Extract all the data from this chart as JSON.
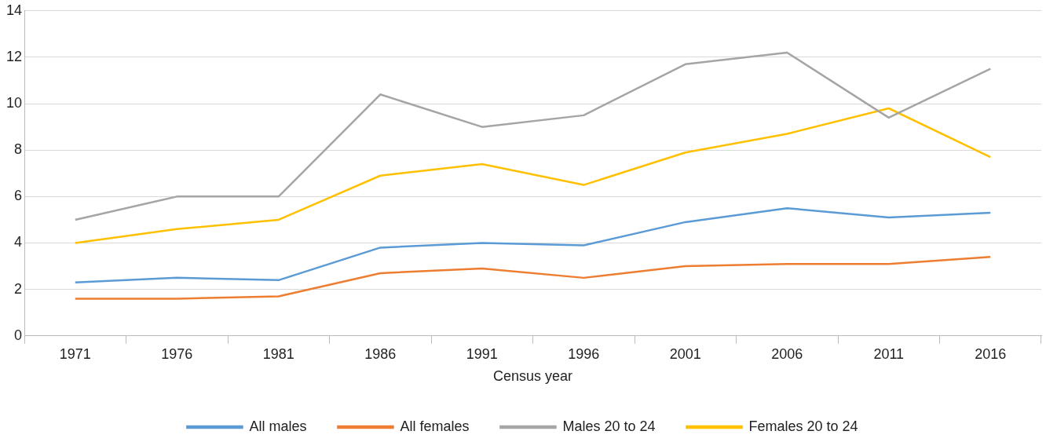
{
  "chart_data": {
    "type": "line",
    "xlabel": "Census year",
    "categories": [
      "1971",
      "1976",
      "1981",
      "1986",
      "1991",
      "1996",
      "2001",
      "2006",
      "2011",
      "2016"
    ],
    "series": [
      {
        "name": "All males",
        "color": "#5b9bd5",
        "values": [
          2.3,
          2.5,
          2.4,
          3.8,
          4.0,
          3.9,
          4.9,
          5.5,
          5.1,
          5.3
        ]
      },
      {
        "name": "All females",
        "color": "#ed7d31",
        "values": [
          1.6,
          1.6,
          1.7,
          2.7,
          2.9,
          2.5,
          3.0,
          3.1,
          3.1,
          3.4
        ]
      },
      {
        "name": "Males 20 to 24",
        "color": "#a5a5a5",
        "values": [
          5.0,
          6.0,
          6.0,
          10.4,
          9.0,
          9.5,
          11.7,
          12.2,
          9.4,
          11.5
        ]
      },
      {
        "name": "Females 20 to 24",
        "color": "#ffc000",
        "values": [
          4.0,
          4.6,
          5.0,
          6.9,
          7.4,
          6.5,
          7.9,
          8.7,
          9.8,
          7.7
        ]
      }
    ],
    "ylim": [
      0,
      14
    ],
    "yticks": [
      0,
      2,
      4,
      6,
      8,
      10,
      12,
      14
    ],
    "grid": "y",
    "legend": "bottom",
    "marker": "none",
    "line_style": "solid"
  }
}
